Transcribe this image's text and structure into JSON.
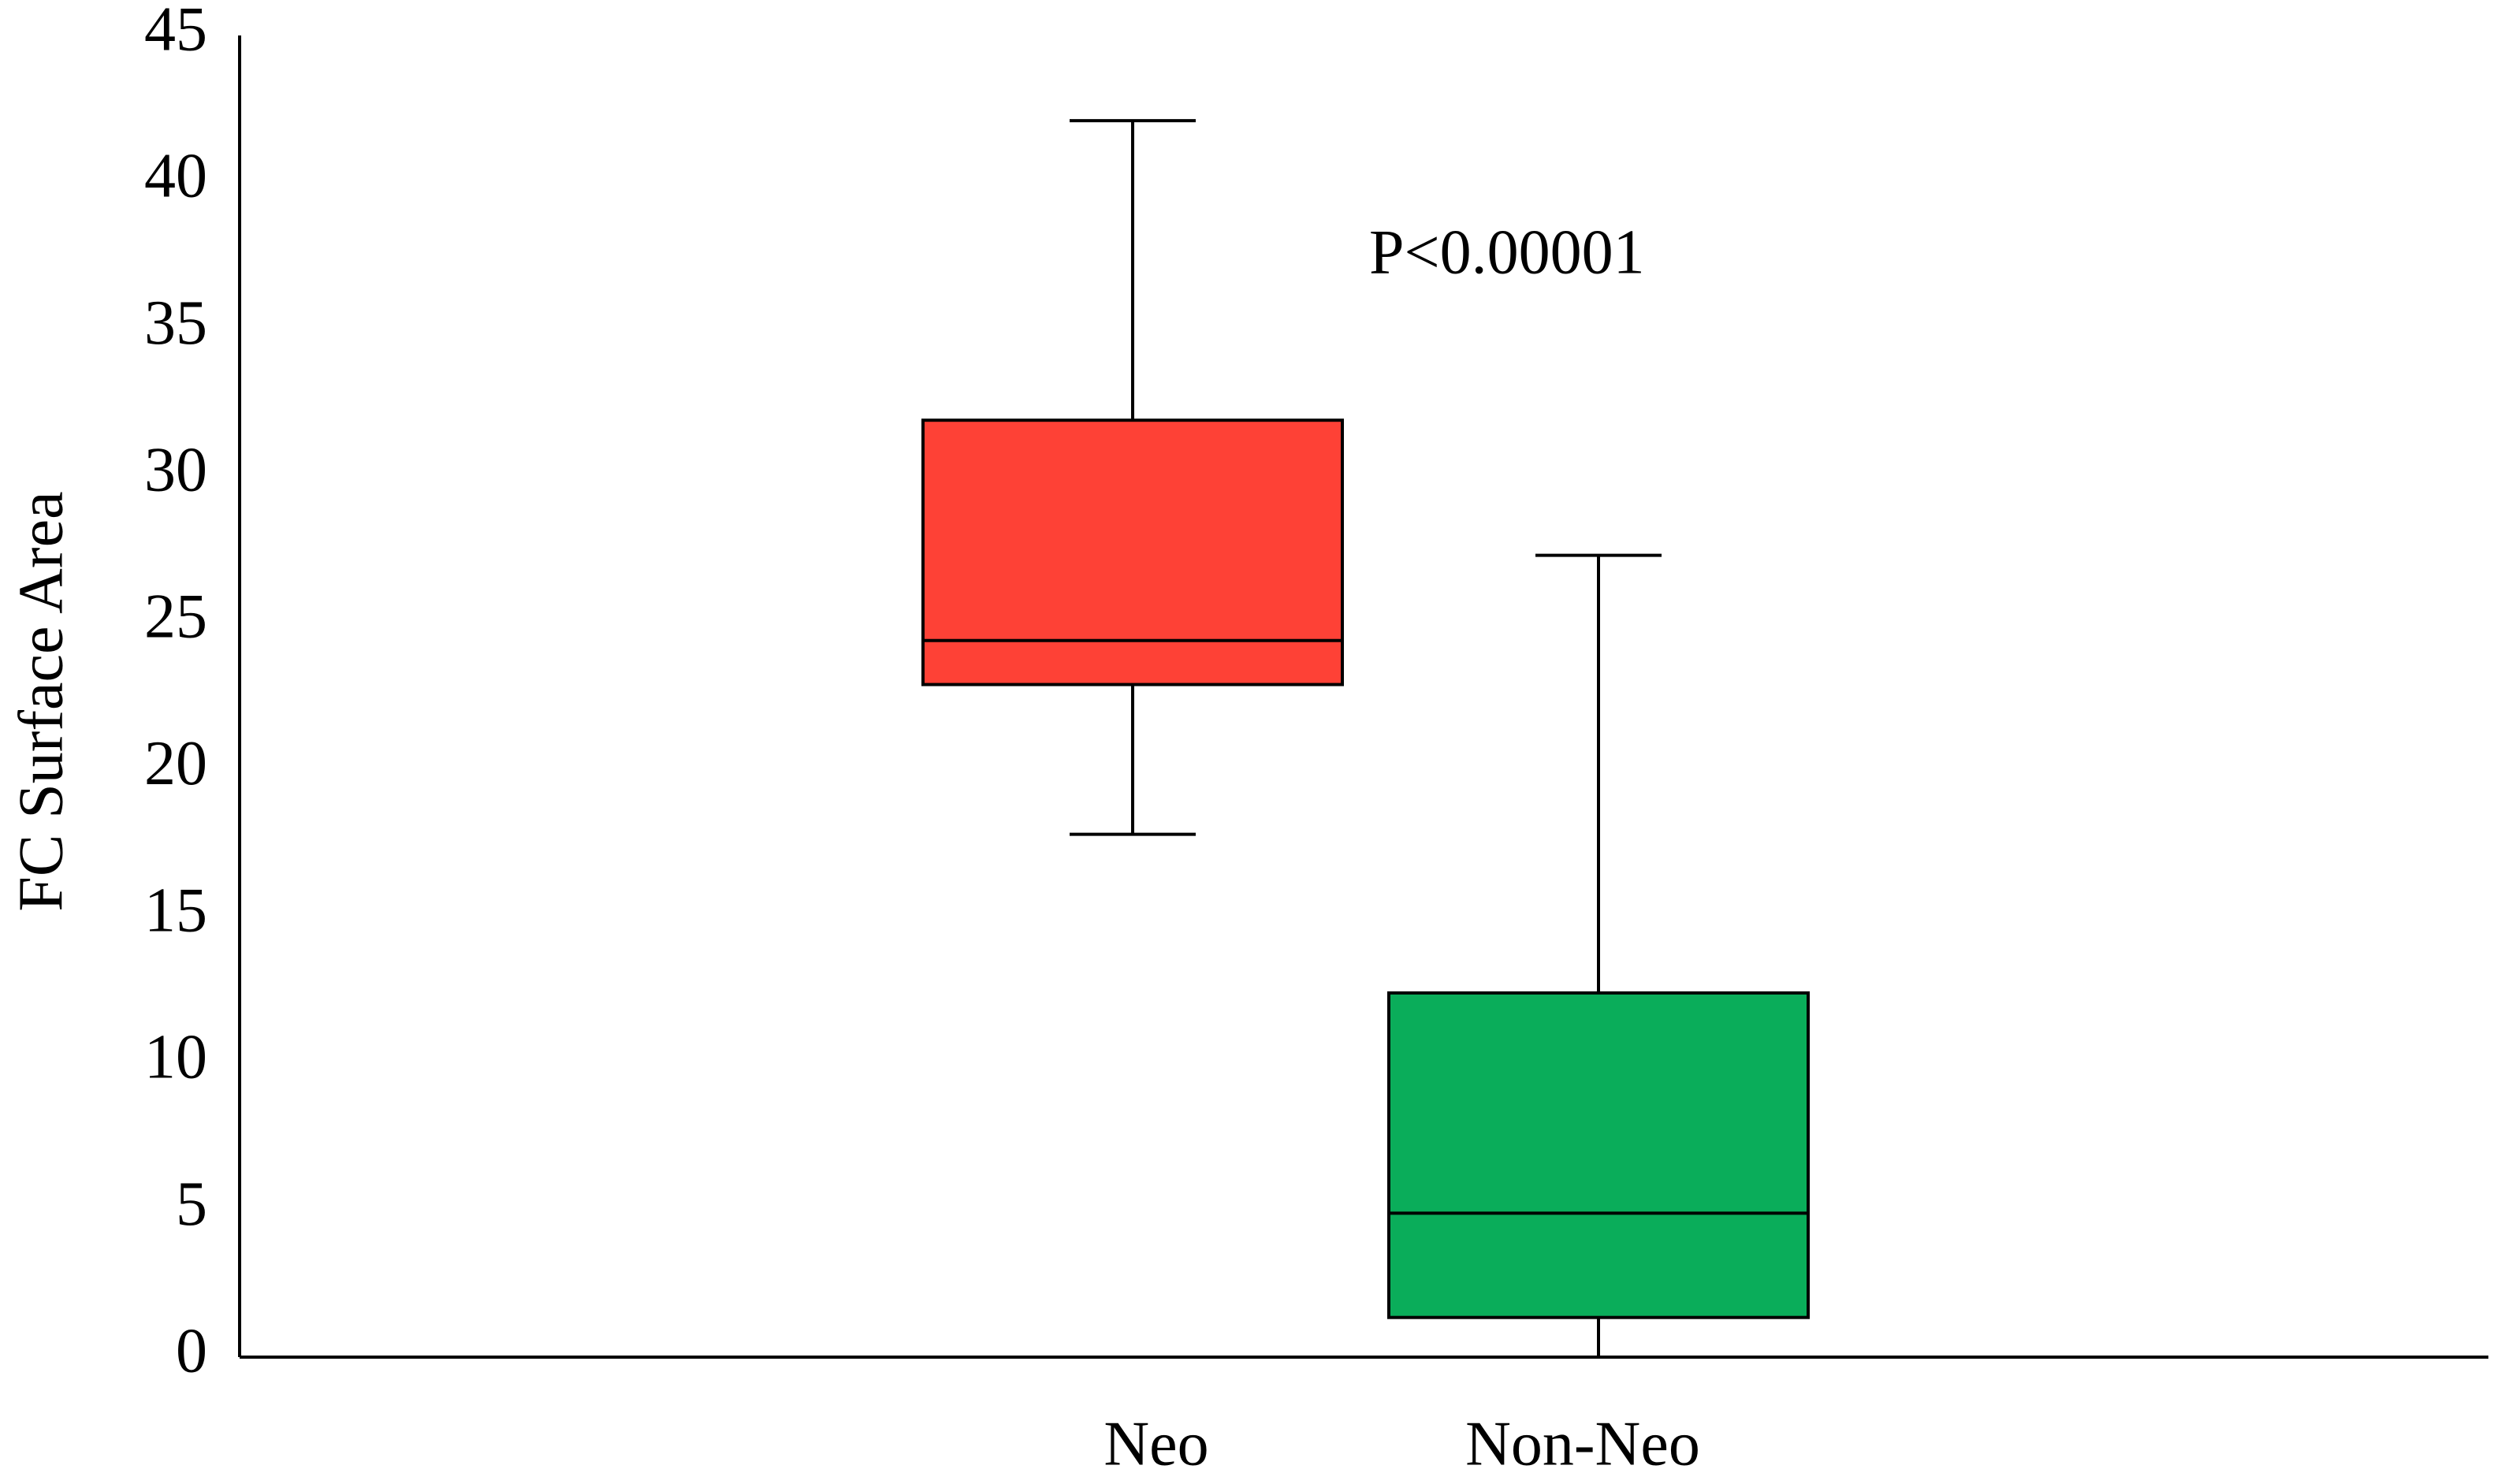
{
  "chart_data": {
    "type": "box",
    "ylabel": "FC Surface Area",
    "annotation": "P<0.00001",
    "categories": [
      "Neo",
      "Non-Neo"
    ],
    "min": [
      17.8,
      0
    ],
    "q1": [
      22.9,
      1.35
    ],
    "median": [
      24.4,
      4.9
    ],
    "q3": [
      31.9,
      12.4
    ],
    "max": [
      42.1,
      27.3
    ],
    "colors": [
      "#fe4136",
      "#0aad5a"
    ],
    "ylim": [
      0,
      45
    ],
    "yticks": [
      0,
      5,
      10,
      15,
      20,
      25,
      30,
      35,
      40,
      45
    ],
    "grid": false
  }
}
